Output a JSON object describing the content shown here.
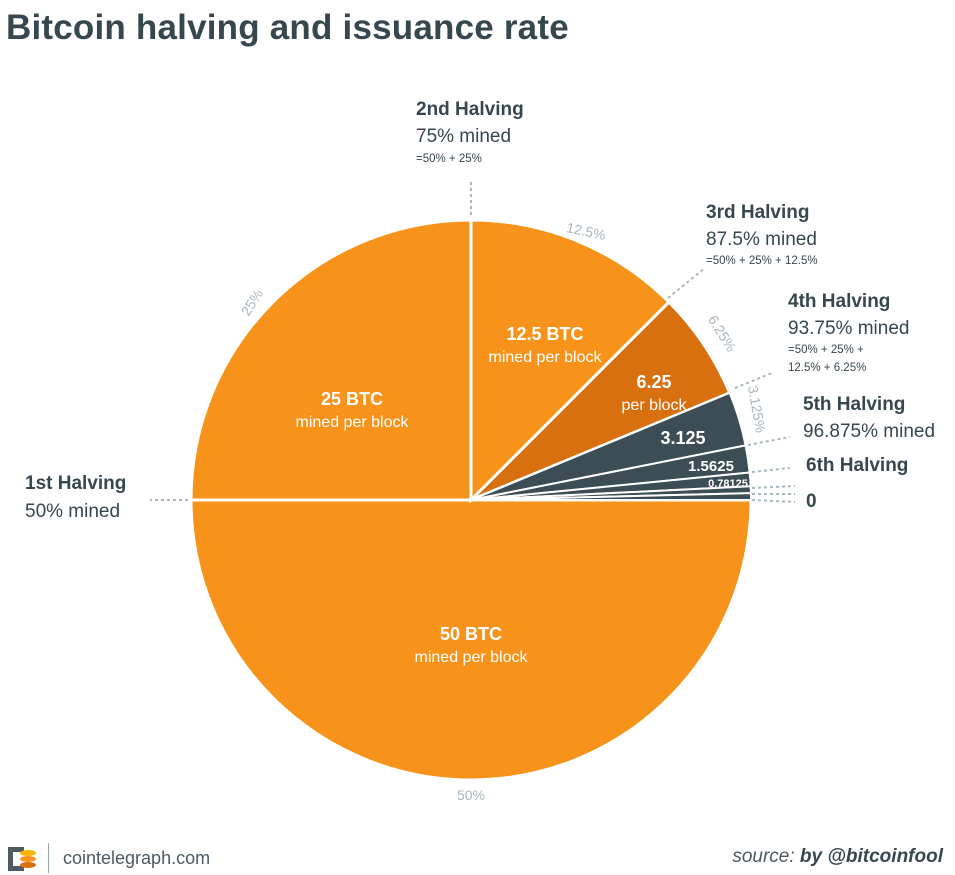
{
  "title": "Bitcoin halving and issuance rate",
  "chart_data": {
    "type": "pie",
    "slices": [
      {
        "value": 50,
        "percent_label": "50%",
        "line1": "50 BTC",
        "line2": "mined per block",
        "color": "#f7931a"
      },
      {
        "value": 25,
        "percent_label": "25%",
        "line1": "25 BTC",
        "line2": "mined per block",
        "color": "#f7931a"
      },
      {
        "value": 12.5,
        "percent_label": "12.5%",
        "line1": "12.5 BTC",
        "line2": "mined per block",
        "color": "#f7931a"
      },
      {
        "value": 6.25,
        "percent_label": "6.25%",
        "line1": "6.25",
        "line2": "per block",
        "color": "#d9700f"
      },
      {
        "value": 3.125,
        "percent_label": "3.125%",
        "line1": "3.125",
        "line2": "",
        "color": "#3d4d55"
      },
      {
        "value": 1.5625,
        "percent_label": "",
        "line1": "1.5625",
        "line2": "",
        "color": "#3d4d55"
      },
      {
        "value": 0.78125,
        "percent_label": "",
        "line1": "0.78125",
        "line2": "",
        "color": "#3d4d55"
      },
      {
        "value": 0.390625,
        "percent_label": "",
        "line1": "",
        "line2": "",
        "color": "#3d4d55"
      },
      {
        "value": 0.390625,
        "percent_label": "",
        "line1": "",
        "line2": "",
        "color": "#3d4d55"
      }
    ],
    "halvings": [
      {
        "name": "1st Halving",
        "mined": "50% mined",
        "detail": ""
      },
      {
        "name": "2nd Halving",
        "mined": "75% mined",
        "detail": "=50% + 25%"
      },
      {
        "name": "3rd Halving",
        "mined": "87.5% mined",
        "detail": "=50% + 25% + 12.5%"
      },
      {
        "name": "4th Halving",
        "mined": "93.75% mined",
        "detail": "=50% + 25% +",
        "detail2": "12.5% + 6.25%"
      },
      {
        "name": "5th Halving",
        "mined": "96.875% mined",
        "detail": ""
      },
      {
        "name": "6th Halving",
        "mined": "",
        "detail": ""
      }
    ],
    "end_label": "0"
  },
  "footer": {
    "brand": "cointelegraph.com",
    "source_prefix": "source:",
    "source_by": "by @bitcoinfool"
  },
  "colors": {
    "orange": "#f7931a",
    "dark_orange": "#d9700f",
    "slate": "#3d4d55",
    "muted": "#a9b7be"
  }
}
